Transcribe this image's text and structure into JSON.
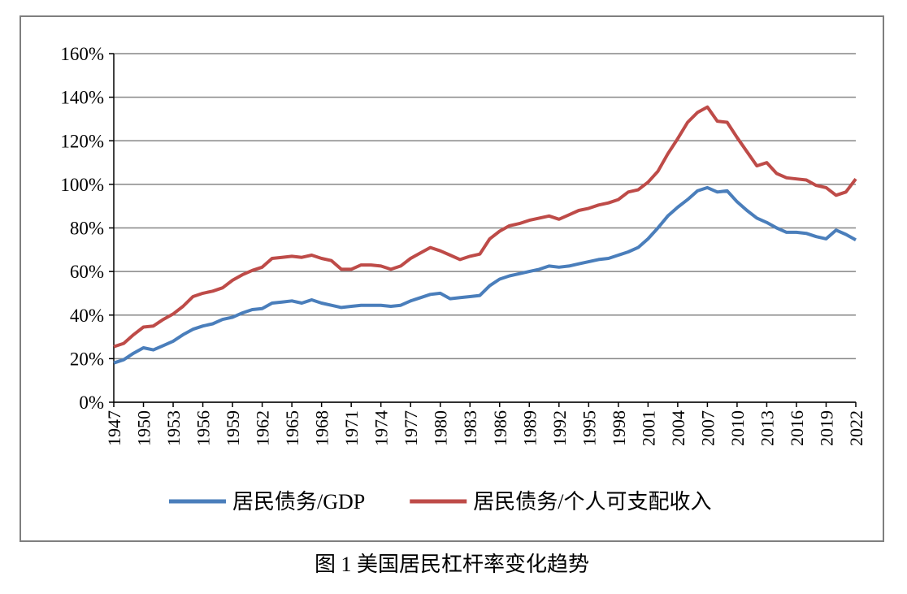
{
  "chart_data": {
    "type": "line",
    "caption": "图 1  美国居民杠杆率变化趋势",
    "x": [
      1947,
      1948,
      1949,
      1950,
      1951,
      1952,
      1953,
      1954,
      1955,
      1956,
      1957,
      1958,
      1959,
      1960,
      1961,
      1962,
      1963,
      1964,
      1965,
      1966,
      1967,
      1968,
      1969,
      1970,
      1971,
      1972,
      1973,
      1974,
      1975,
      1976,
      1977,
      1978,
      1979,
      1980,
      1981,
      1982,
      1983,
      1984,
      1985,
      1986,
      1987,
      1988,
      1989,
      1990,
      1991,
      1992,
      1993,
      1994,
      1995,
      1996,
      1997,
      1998,
      1999,
      2000,
      2001,
      2002,
      2003,
      2004,
      2005,
      2006,
      2007,
      2008,
      2009,
      2010,
      2011,
      2012,
      2013,
      2014,
      2015,
      2016,
      2017,
      2018,
      2019,
      2020,
      2021,
      2022
    ],
    "xlim": [
      1947,
      2022
    ],
    "xticks": [
      1947,
      1950,
      1953,
      1956,
      1959,
      1962,
      1965,
      1968,
      1971,
      1974,
      1977,
      1980,
      1983,
      1986,
      1989,
      1992,
      1995,
      1998,
      2001,
      2004,
      2007,
      2010,
      2013,
      2016,
      2019,
      2022
    ],
    "ylim": [
      0,
      160
    ],
    "yticks": [
      {
        "value": 0,
        "label": "0%"
      },
      {
        "value": 20,
        "label": "20%"
      },
      {
        "value": 40,
        "label": "40%"
      },
      {
        "value": 60,
        "label": "60%"
      },
      {
        "value": 80,
        "label": "80%"
      },
      {
        "value": 100,
        "label": "100%"
      },
      {
        "value": 120,
        "label": "120%"
      },
      {
        "value": 140,
        "label": "140%"
      },
      {
        "value": 160,
        "label": "160%"
      }
    ],
    "grid": true,
    "legend_position": "bottom",
    "series": [
      {
        "name": "居民债务/GDP",
        "color": "#4a7ebb",
        "values": [
          18,
          19.5,
          22.5,
          25,
          24,
          26,
          28,
          31,
          33.5,
          35,
          36,
          38,
          39,
          41,
          42.5,
          43,
          45.5,
          46,
          46.5,
          45.5,
          47,
          45.5,
          44.5,
          43.5,
          44,
          44.5,
          44.5,
          44.5,
          44,
          44.5,
          46.5,
          48,
          49.5,
          50,
          47.5,
          48,
          48.5,
          49,
          53.5,
          56.5,
          58,
          59,
          60,
          61,
          62.5,
          62,
          62.5,
          63.5,
          64.5,
          65.5,
          66,
          67.5,
          69,
          71,
          75,
          80,
          85.5,
          89.5,
          93,
          97,
          98.5,
          96.5,
          97,
          92,
          88,
          84.5,
          82.5,
          80,
          78,
          78,
          77.5,
          76,
          75,
          79,
          77,
          74.5
        ]
      },
      {
        "name": "居民债务/个人可支配收入",
        "color": "#be4b48",
        "values": [
          25.5,
          27,
          31,
          34.5,
          35,
          38,
          40.5,
          44,
          48.5,
          50,
          51,
          52.5,
          56,
          58.5,
          60.5,
          62,
          66,
          66.5,
          67,
          66.5,
          67.5,
          66,
          65,
          61,
          61,
          63,
          63,
          62.5,
          61,
          62.5,
          66,
          68.5,
          71,
          69.5,
          67.5,
          65.5,
          67,
          68,
          75,
          78.5,
          81,
          82,
          83.5,
          84.5,
          85.5,
          84,
          86,
          88,
          89,
          90.5,
          91.5,
          93,
          96.5,
          97.5,
          101,
          106,
          114,
          121,
          128.5,
          133,
          135.5,
          129,
          128.5,
          121.5,
          115,
          108.5,
          110,
          105,
          103,
          102.5,
          102,
          99.5,
          98.5,
          95,
          96.5,
          102.5
        ]
      }
    ]
  }
}
